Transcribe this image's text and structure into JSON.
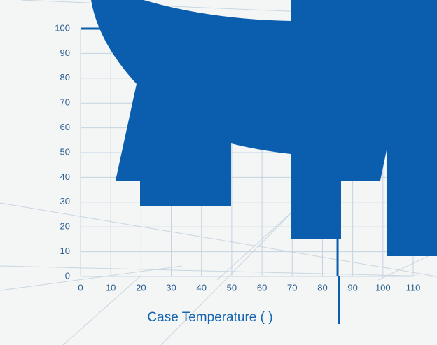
{
  "chart_data": {
    "type": "line",
    "x_label": "Case Temperature ( )",
    "x": [
      0,
      85,
      85
    ],
    "series": [
      {
        "color": "#0b5ead",
        "values": [
          100,
          100,
          0
        ]
      }
    ],
    "xlim": [
      0,
      110
    ],
    "xticks": [
      0,
      10,
      20,
      30,
      40,
      50,
      60,
      70,
      80,
      90,
      100,
      110
    ],
    "ylim": [
      0,
      100
    ],
    "yticks": [
      0,
      10,
      20,
      30,
      40,
      50,
      60,
      70,
      80,
      90,
      100
    ],
    "grid": true
  }
}
